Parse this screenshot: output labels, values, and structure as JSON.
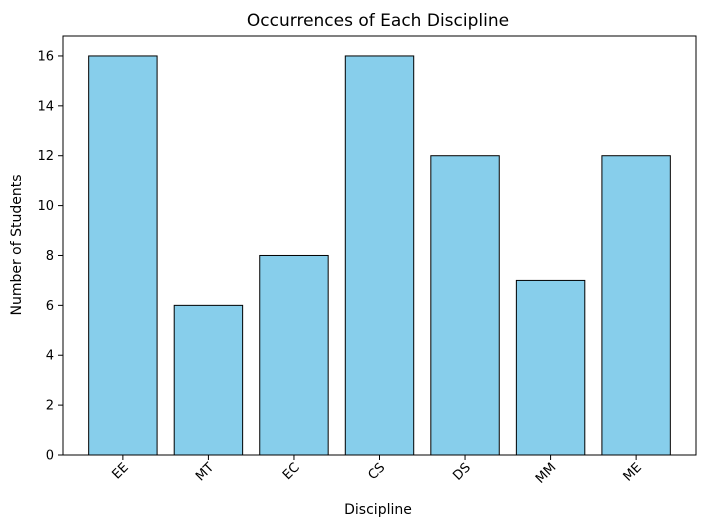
{
  "chart_data": {
    "type": "bar",
    "title": "Occurrences of Each Discipline",
    "xlabel": "Discipline",
    "ylabel": "Number of Students",
    "categories": [
      "EE",
      "MT",
      "EC",
      "CS",
      "DS",
      "MM",
      "ME"
    ],
    "values": [
      16,
      6,
      8,
      16,
      12,
      7,
      12
    ],
    "ylim": [
      0,
      16.8
    ],
    "yticks": [
      0,
      2,
      4,
      6,
      8,
      10,
      12,
      14,
      16
    ],
    "grid": false,
    "legend": "none",
    "bar_color": "#87CEEB",
    "edge_color": "#000000",
    "xtick_rotation_deg": 45
  }
}
